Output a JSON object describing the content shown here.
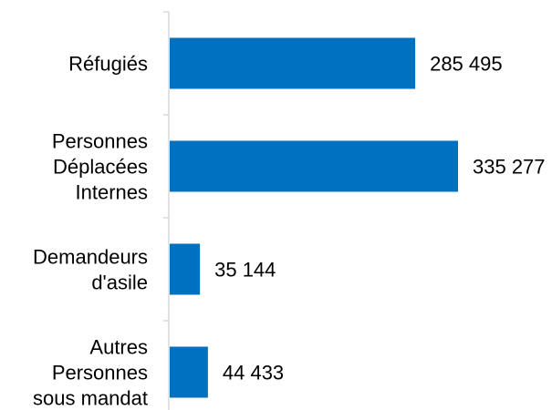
{
  "chart_data": {
    "type": "bar",
    "orientation": "horizontal",
    "categories": [
      [
        "Réfugiés"
      ],
      [
        "Personnes",
        "Déplacées",
        "Internes"
      ],
      [
        "Demandeurs",
        "d'asile"
      ],
      [
        "Autres",
        "Personnes",
        "sous mandat"
      ]
    ],
    "values": [
      285495,
      335277,
      35144,
      44433
    ],
    "value_labels": [
      "285 495",
      "335 277",
      "35 144",
      "44 433"
    ],
    "xlim": [
      0,
      335277
    ],
    "grid": false,
    "legend": "none",
    "colors": {
      "bar": "#0070C0",
      "axis": "#D9D9D9"
    }
  }
}
